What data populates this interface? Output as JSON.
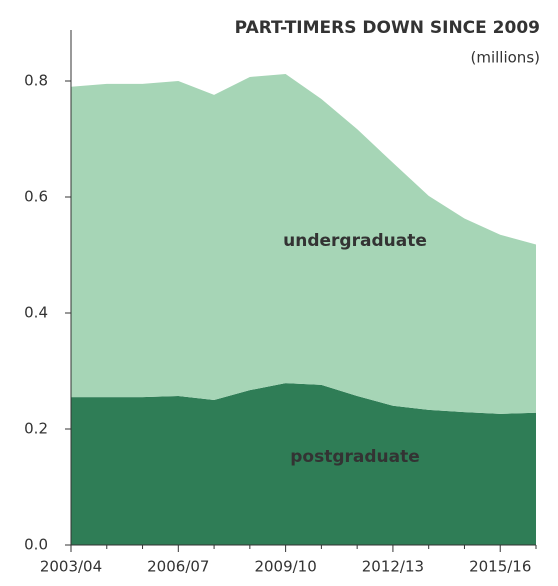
{
  "chart_data": {
    "type": "stacked_area",
    "title": "PART-TIMERS DOWN SINCE 2009",
    "subtitle": "(millions)",
    "categories": [
      "2003/04",
      null,
      null,
      "2006/07",
      null,
      null,
      "2009/10",
      null,
      null,
      "2012/13",
      null,
      null,
      "2015/16",
      null
    ],
    "series": [
      {
        "name": "postgraduate",
        "color": "#2f7d56",
        "values": [
          0.255,
          0.255,
          0.255,
          0.257,
          0.25,
          0.267,
          0.279,
          0.276,
          0.257,
          0.24,
          0.233,
          0.229,
          0.226,
          0.228
        ]
      },
      {
        "name": "undergraduate",
        "color": "#a6d5b6",
        "values": [
          0.535,
          0.54,
          0.54,
          0.543,
          0.526,
          0.54,
          0.533,
          0.493,
          0.46,
          0.419,
          0.369,
          0.334,
          0.309,
          0.29
        ]
      }
    ],
    "ylim": [
      0,
      0.8
    ],
    "yticks": [
      {
        "value": 0,
        "label": "0.0"
      },
      0.2,
      0.4,
      0.6,
      0.8
    ]
  }
}
